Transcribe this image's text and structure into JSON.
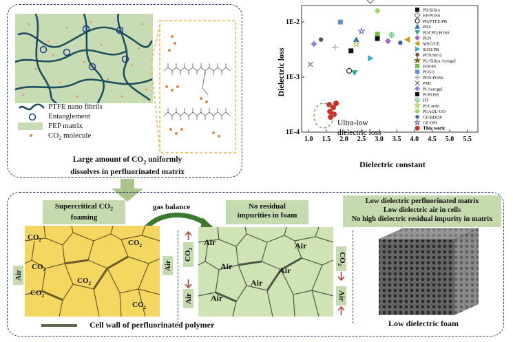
{
  "top_left": {
    "legend": {
      "fibrils": "PTFE nano fibrils",
      "entanglement": "Entanglement",
      "matrix": "FEP matrix",
      "molecule_prefix": "CO",
      "molecule_sub": "2",
      "molecule_suffix": " molecule"
    },
    "caption_line1_prefix": "Large amount of CO",
    "caption_line1_sub": "2",
    "caption_line1_suffix": " uniformly",
    "caption_line2": "dissolves in perfluorinated matrix"
  },
  "chart_data": {
    "type": "scatter",
    "xlabel": "Dielectric constant",
    "ylabel": "Dielectric loss",
    "x_ticks": [
      "1.0",
      "1.5",
      "2.0",
      "2.5",
      "3.0",
      "3.5",
      "4.0",
      "4.5",
      "5.0",
      "5.5"
    ],
    "y_ticks": [
      "1E-4",
      "1E-3",
      "1E-2"
    ],
    "xlim": [
      0.8,
      5.8
    ],
    "ylim_log10": [
      -4,
      -1.7
    ],
    "annotation": "Ultra-low dielectric loss",
    "series": [
      {
        "name": "PB/Silica",
        "x": 2.2,
        "y": 0.003
      },
      {
        "name": "EP/POSS",
        "x": 2.75,
        "y": 0.025
      },
      {
        "name": "PB/PTFE/PB",
        "x": 2.15,
        "y": 0.0013
      },
      {
        "name": "PBZ",
        "x": 2.35,
        "y": 0.0048
      },
      {
        "name": "PDCPD/POSS",
        "x": 2.3,
        "y": 0.0012
      },
      {
        "name": "PEN",
        "x": 3.25,
        "y": 0.0045
      },
      {
        "name": "MSG/CE",
        "x": 3.8,
        "y": 0.0048
      },
      {
        "name": "SiO2/PB",
        "x": 2.75,
        "y": 0.0022
      },
      {
        "name": "PEN/SiO2",
        "x": 1.35,
        "y": 0.0048
      },
      {
        "name": "PU/Silica Aerogel",
        "x": 2.7,
        "y": 0.03
      },
      {
        "name": "FEP/PI",
        "x": 2.95,
        "y": 0.006
      },
      {
        "name": "PI/GO",
        "x": 1.9,
        "y": 0.01
      },
      {
        "name": "PEN/POSS",
        "x": 1.75,
        "y": 0.0035
      },
      {
        "name": "PMI",
        "x": 1.05,
        "y": 0.0017
      },
      {
        "name": "PI Aerogel",
        "x": 1.15,
        "y": 0.004
      },
      {
        "name": "PI/POSS",
        "x": 2.95,
        "y": 0.005
      },
      {
        "name": "HT",
        "x": 3.35,
        "y": 0.0058
      },
      {
        "name": "PI/Cardo",
        "x": 2.35,
        "y": 0.004
      },
      {
        "name": "PI/AQL-GO",
        "x": 2.95,
        "y": 0.016
      },
      {
        "name": "GF/BDDP",
        "x": 3.6,
        "y": 0.0042
      },
      {
        "name": "GF/OPI",
        "x": 2.5,
        "y": 0.0068
      },
      {
        "name": "This work",
        "x": 1.7,
        "y": 0.00025
      }
    ],
    "colors": [
      "#111111",
      "#555555",
      "#222222",
      "#2f6db5",
      "#2aa39a",
      "#a569bd",
      "#c7961b",
      "#2ab0c7",
      "#6b4f3a",
      "#7a6a10",
      "#6bbf3a",
      "#5b8fd0",
      "#9e9e9e",
      "#707070",
      "#8a88d6",
      "#111111",
      "#5fc27a",
      "#a3c93a",
      "#9ed66a",
      "#3b5fa0",
      "#6a6fb5",
      "#d12b2b"
    ]
  },
  "bottom": {
    "foaming_label_line1_prefix": "Supercritical CO",
    "foaming_label_line1_sub": "2",
    "foaming_label_line2": "foaming",
    "gas_balance": "gas balance",
    "no_residual_line1": "No residual",
    "no_residual_line2": "impurities in foam",
    "right_lines": [
      "Low dielectric perfluorinated matrix",
      "Low dielectric air in cells",
      "No high dielectric residual impurity in matrix"
    ],
    "air": "Air",
    "co2_prefix": "CO",
    "co2_sub": "2",
    "cell_wall_label": "Cell wall of perfluorinated polymer",
    "foam_caption": "Low dielectric foam"
  }
}
